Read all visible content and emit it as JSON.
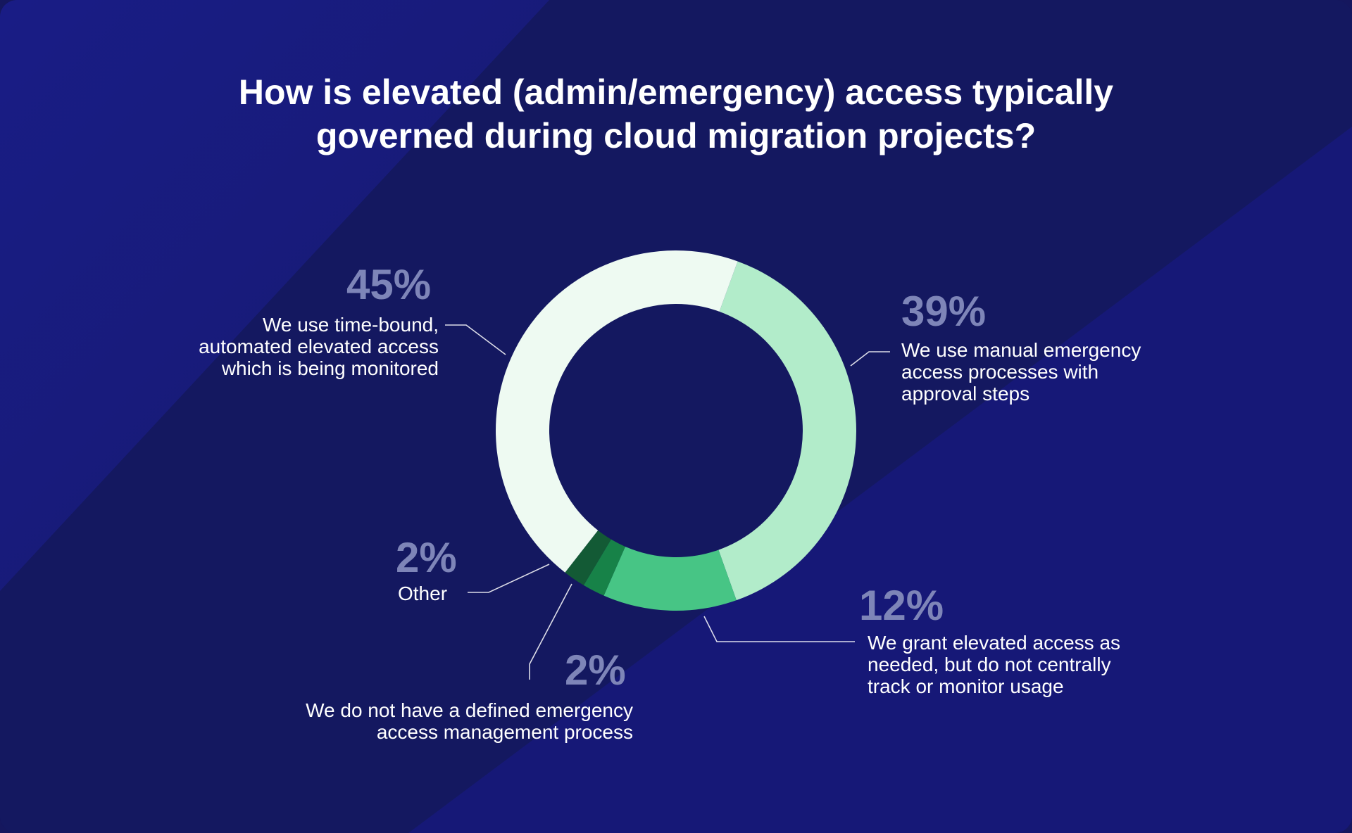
{
  "title_lines": [
    "How is elevated (admin/emergency) access typically",
    "governed during cloud migration projects?"
  ],
  "colors": {
    "background": "#141860",
    "accent_band": "#1b1f8a",
    "percent_text": "#7e85b8",
    "label_text": "#ffffff",
    "leader_line": "#ffffff"
  },
  "chart_data": {
    "type": "pie",
    "style": "donut",
    "title": "How is elevated (admin/emergency) access typically governed during cloud migration projects?",
    "slices": [
      {
        "value": 39,
        "display": "39%",
        "label_lines": [
          "We use manual emergency",
          "access processes with",
          "approval steps"
        ],
        "color": "#b2ecca"
      },
      {
        "value": 12,
        "display": "12%",
        "label_lines": [
          "We grant elevated access as",
          "needed, but do not centrally",
          "track or monitor usage"
        ],
        "color": "#47c585"
      },
      {
        "value": 2,
        "display": "2%",
        "label_lines": [
          "We do not have a defined emergency",
          "access management process"
        ],
        "color": "#178248"
      },
      {
        "value": 2,
        "display": "2%",
        "label_lines": [
          "Other"
        ],
        "color": "#135a35"
      },
      {
        "value": 45,
        "display": "45%",
        "label_lines": [
          "We use time-bound,",
          "automated elevated access",
          "which is being monitored"
        ],
        "color": "#eefaf2"
      }
    ]
  }
}
